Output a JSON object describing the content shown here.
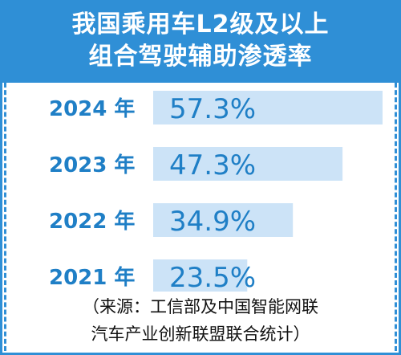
{
  "title": {
    "line1": "我国乘用车L2级及以上",
    "line2": "组合驾驶辅助渗透率"
  },
  "source": {
    "line1": "（来源：工信部及中国智能网联",
    "line2": "汽车产业创新联盟联合统计）"
  },
  "colors": {
    "accent": "#2f8fd6",
    "bar": "#cce3f7",
    "text_blue": "#1f7fc6"
  },
  "chart_data": {
    "type": "bar",
    "orientation": "horizontal",
    "title": "我国乘用车L2级及以上组合驾驶辅助渗透率",
    "categories": [
      "2024 年",
      "2023 年",
      "2022 年",
      "2021 年"
    ],
    "values": [
      57.3,
      47.3,
      34.9,
      23.5
    ],
    "value_labels": [
      "57.3%",
      "47.3%",
      "34.9%",
      "23.5%"
    ],
    "unit": "%"
  }
}
